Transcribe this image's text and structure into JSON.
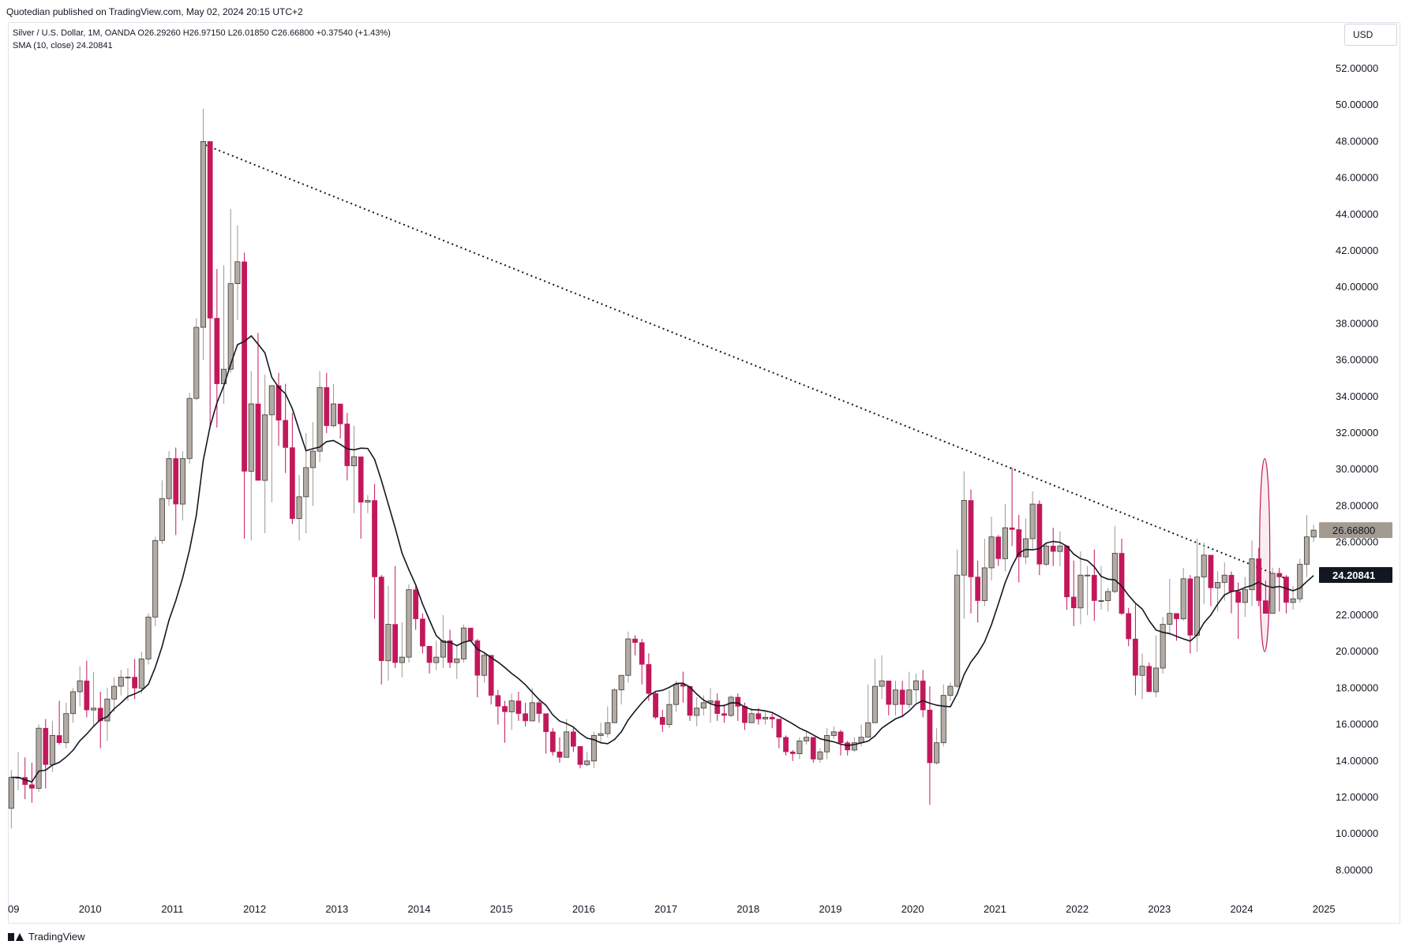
{
  "header": {
    "published": "Quotedian published on TradingView.com, May 02, 2024 20:15 UTC+2",
    "symbol_line": "Silver / U.S. Dollar, 1M, OANDA  O26.29260  H26.97150  L26.01850  C26.66800  +0.37540 (+1.43%)",
    "sma_line": "SMA (10, close)  24.20841",
    "currency": "USD"
  },
  "footer": {
    "brand": "TradingView"
  },
  "colors": {
    "up": "#b2aca4",
    "down": "#c2185b",
    "wick_up": "#9e9890",
    "sma": "#131722",
    "trendline": "#131722",
    "price_label_bg": "#a39b92",
    "sma_label_bg": "#131722"
  },
  "chart_data": {
    "type": "candlestick",
    "title": "Silver / U.S. Dollar, 1M, OANDA",
    "interval": "1M",
    "y_axis": {
      "min": 7,
      "max": 53,
      "ticks": [
        "52.00000",
        "50.00000",
        "48.00000",
        "46.00000",
        "44.00000",
        "42.00000",
        "40.00000",
        "38.00000",
        "36.00000",
        "34.00000",
        "32.00000",
        "30.00000",
        "28.00000",
        "26.00000",
        "24.00000",
        "22.00000",
        "20.00000",
        "18.00000",
        "16.00000",
        "14.00000",
        "12.00000",
        "10.00000",
        "8.00000"
      ],
      "tick_values": [
        52,
        50,
        48,
        46,
        44,
        42,
        40,
        38,
        36,
        34,
        32,
        30,
        28,
        26,
        24,
        22,
        20,
        18,
        16,
        14,
        12,
        10,
        8
      ]
    },
    "x_axis": {
      "start": 2009.0,
      "end": 2025.0,
      "labels": [
        "09",
        "2010",
        "2011",
        "2012",
        "2013",
        "2014",
        "2015",
        "2016",
        "2017",
        "2018",
        "2019",
        "2020",
        "2021",
        "2022",
        "2023",
        "2024",
        "2025"
      ],
      "label_values": [
        2009,
        2010,
        2011,
        2012,
        2013,
        2014,
        2015,
        2016,
        2017,
        2018,
        2019,
        2020,
        2021,
        2022,
        2023,
        2024,
        2025
      ]
    },
    "last_price": {
      "label": "26.66800",
      "value": 26.668
    },
    "sma_value": {
      "label": "24.20841",
      "value": 24.20841
    },
    "series": [
      {
        "name": "Silver / U.S. Dollar",
        "kind": "ohlc",
        "start": [
          2009,
          1
        ],
        "closes": [
          13.1,
          13.1,
          12.7,
          12.5,
          15.8,
          13.8,
          15.4,
          15.0,
          16.6,
          17.8,
          18.4,
          16.8,
          16.9,
          16.2,
          17.4,
          18.1,
          18.6,
          18.6,
          18.0,
          19.6,
          21.9,
          26.1,
          28.4,
          30.6,
          28.1,
          30.6,
          33.9,
          37.8,
          48.0,
          38.3,
          34.7,
          35.5,
          40.2,
          41.4,
          29.9,
          33.6,
          29.4,
          33.0,
          34.6,
          32.7,
          31.2,
          27.3,
          28.5,
          30.1,
          31.0,
          34.5,
          32.4,
          33.6,
          32.5,
          30.2,
          30.7,
          28.2,
          28.3,
          24.1,
          19.5,
          21.5,
          19.4,
          19.7,
          23.4,
          21.8,
          20.3,
          19.4,
          19.7,
          20.6,
          19.4,
          19.6,
          21.3,
          20.6,
          18.7,
          19.8,
          17.6,
          17.0,
          16.7,
          17.3,
          16.6,
          16.2,
          17.2,
          16.6,
          15.6,
          14.5,
          14.2,
          15.6,
          14.8,
          13.8,
          14.0,
          15.4,
          15.5,
          16.1,
          17.9,
          18.7,
          20.7,
          20.5,
          19.3,
          17.7,
          16.4,
          16.0,
          17.1,
          18.2,
          18.1,
          16.5,
          16.9,
          17.2,
          17.3,
          16.6,
          16.5,
          17.5,
          17.0,
          16.1,
          16.6,
          16.3,
          16.4,
          16.3,
          15.3,
          14.5,
          14.4,
          15.1,
          15.3,
          14.1,
          14.5,
          15.4,
          15.6,
          15.0,
          14.6,
          15.0,
          15.3,
          16.1,
          18.1,
          18.4,
          17.1,
          17.9,
          17.1,
          17.9,
          18.4,
          16.8,
          13.9,
          15.0,
          17.6,
          18.1,
          24.2,
          28.3,
          24.1,
          22.8,
          24.6,
          26.3,
          25.1,
          26.8,
          26.7,
          25.2,
          26.2,
          28.1,
          24.8,
          25.8,
          25.5,
          25.8,
          23.0,
          22.4,
          24.2,
          24.2,
          22.8,
          22.8,
          23.3,
          25.4,
          22.1,
          20.7,
          18.7,
          19.2,
          17.8,
          19.1,
          21.5,
          22.1,
          21.8,
          24.0,
          20.9,
          24.1,
          25.3,
          23.5,
          23.8,
          24.2,
          23.3,
          22.7,
          23.4,
          25.1,
          22.8,
          22.1,
          24.3,
          24.1,
          22.7,
          22.9,
          24.8,
          26.3,
          26.668
        ],
        "opens": [
          11.4,
          13.1,
          13.1,
          12.7,
          12.5,
          15.8,
          13.8,
          15.4,
          15.0,
          16.6,
          17.8,
          18.4,
          16.8,
          16.9,
          16.2,
          17.4,
          18.1,
          18.6,
          18.6,
          18.0,
          19.6,
          21.9,
          26.1,
          28.4,
          30.6,
          28.1,
          30.6,
          33.9,
          37.8,
          48.0,
          38.3,
          34.7,
          35.5,
          40.2,
          41.4,
          29.9,
          33.6,
          29.4,
          33.0,
          34.6,
          32.7,
          31.2,
          27.3,
          28.5,
          30.1,
          31.0,
          34.5,
          32.4,
          33.6,
          32.5,
          30.2,
          30.7,
          28.2,
          28.3,
          24.1,
          19.5,
          21.5,
          19.4,
          19.7,
          23.4,
          21.8,
          20.3,
          19.4,
          19.7,
          20.6,
          19.4,
          19.6,
          21.3,
          20.6,
          18.7,
          19.8,
          17.6,
          17.0,
          16.7,
          17.3,
          16.6,
          16.2,
          17.2,
          16.6,
          15.6,
          14.5,
          14.2,
          15.6,
          14.8,
          13.8,
          14.0,
          15.4,
          15.5,
          16.1,
          17.9,
          18.7,
          20.7,
          20.5,
          19.3,
          17.7,
          16.4,
          16.0,
          17.1,
          18.2,
          18.1,
          16.5,
          16.9,
          17.2,
          17.3,
          16.6,
          16.5,
          17.5,
          17.0,
          16.1,
          16.6,
          16.3,
          16.4,
          16.3,
          15.3,
          14.5,
          14.4,
          15.1,
          15.3,
          14.1,
          14.5,
          15.4,
          15.6,
          15.0,
          14.6,
          15.0,
          15.3,
          16.1,
          18.1,
          18.4,
          17.1,
          17.9,
          17.1,
          17.9,
          18.4,
          16.8,
          13.9,
          15.0,
          17.6,
          18.1,
          24.2,
          28.3,
          24.1,
          22.8,
          24.6,
          26.3,
          25.1,
          26.8,
          26.7,
          25.2,
          26.2,
          28.1,
          24.8,
          25.8,
          25.5,
          25.8,
          23.0,
          22.4,
          24.2,
          24.2,
          22.8,
          22.8,
          23.3,
          25.4,
          22.1,
          20.7,
          18.7,
          19.2,
          17.8,
          19.1,
          21.5,
          22.1,
          21.8,
          24.0,
          20.9,
          24.1,
          25.3,
          23.5,
          23.8,
          24.2,
          23.3,
          22.7,
          23.4,
          25.1,
          22.8,
          22.1,
          24.3,
          24.1,
          22.7,
          22.9,
          24.8,
          26.2926
        ],
        "highs": [
          13.5,
          14.5,
          14.2,
          13.9,
          16.0,
          16.3,
          16.2,
          17.3,
          17.2,
          18.0,
          19.2,
          19.5,
          18.9,
          17.8,
          18.0,
          18.6,
          19.0,
          19.1,
          19.6,
          20.0,
          22.1,
          26.3,
          29.4,
          31.0,
          31.2,
          31.0,
          34.2,
          38.3,
          49.8,
          43.9,
          41.0,
          41.2,
          44.3,
          43.4,
          41.9,
          35.4,
          37.5,
          35.2,
          34.5,
          35.3,
          34.7,
          33.1,
          29.7,
          32.0,
          32.6,
          35.4,
          35.3,
          34.7,
          33.6,
          33.1,
          32.4,
          30.4,
          28.6,
          29.2,
          24.2,
          23.6,
          24.7,
          21.6,
          23.7,
          23.6,
          22.1,
          20.1,
          20.6,
          22.0,
          21.2,
          20.3,
          21.5,
          21.2,
          20.7,
          19.9,
          18.3,
          17.9,
          17.3,
          17.7,
          17.8,
          17.2,
          18.0,
          17.3,
          16.3,
          15.8,
          15.3,
          16.3,
          15.8,
          14.8,
          14.5,
          15.6,
          16.1,
          17.0,
          18.0,
          18.3,
          21.1,
          20.9,
          20.7,
          19.9,
          17.8,
          16.8,
          17.9,
          18.4,
          18.9,
          17.9,
          17.5,
          17.6,
          18.0,
          17.7,
          17.1,
          17.6,
          17.7,
          17.2,
          16.9,
          16.9,
          16.7,
          16.6,
          15.9,
          15.4,
          14.6,
          15.3,
          15.6,
          15.3,
          14.7,
          15.8,
          15.9,
          15.7,
          15.1,
          15.3,
          16.0,
          18.2,
          19.6,
          19.8,
          18.3,
          18.4,
          18.4,
          18.9,
          18.8,
          19.0,
          18.1,
          15.8,
          18.2,
          18.3,
          25.6,
          29.9,
          28.9,
          25.0,
          26.2,
          27.4,
          26.4,
          28.1,
          30.1,
          27.5,
          27.3,
          28.8,
          28.3,
          26.0,
          26.8,
          26.6,
          25.8,
          25.0,
          25.5,
          24.7,
          25.6,
          24.7,
          23.5,
          26.9,
          26.2,
          22.4,
          22.6,
          19.9,
          19.4,
          20.9,
          21.9,
          24.0,
          22.1,
          24.6,
          24.2,
          26.2,
          26.0,
          25.2,
          24.4,
          24.9,
          24.4,
          23.8,
          24.1,
          26.1,
          25.7,
          23.9,
          24.6,
          24.6,
          24.2,
          23.6,
          25.1,
          27.5,
          26.9715
        ],
        "lows": [
          10.3,
          12.4,
          11.9,
          11.7,
          12.3,
          12.5,
          13.4,
          14.9,
          14.7,
          16.1,
          17.0,
          16.4,
          15.9,
          14.7,
          15.1,
          16.7,
          17.6,
          17.3,
          17.4,
          17.7,
          19.3,
          21.4,
          25.9,
          28.0,
          26.4,
          27.2,
          30.3,
          33.8,
          36.0,
          32.3,
          32.3,
          33.6,
          35.3,
          38.2,
          26.2,
          26.1,
          30.0,
          26.5,
          28.2,
          31.3,
          29.8,
          27.0,
          26.1,
          26.5,
          28.0,
          30.4,
          32.0,
          32.3,
          31.7,
          29.4,
          27.6,
          26.2,
          27.6,
          21.8,
          18.2,
          18.4,
          19.1,
          18.6,
          19.4,
          21.2,
          19.9,
          18.8,
          19.0,
          19.1,
          19.1,
          18.5,
          19.4,
          20.6,
          17.5,
          18.3,
          17.1,
          16.0,
          15.0,
          15.7,
          16.2,
          15.9,
          16.3,
          16.1,
          14.4,
          14.3,
          13.9,
          14.5,
          14.5,
          13.6,
          13.7,
          13.6,
          15.0,
          15.3,
          16.4,
          17.1,
          18.3,
          19.8,
          18.2,
          17.3,
          16.3,
          15.6,
          15.8,
          16.7,
          17.2,
          16.2,
          15.9,
          16.5,
          16.1,
          16.2,
          16.1,
          16.4,
          16.2,
          15.7,
          16.1,
          16.0,
          16.0,
          15.8,
          14.7,
          14.3,
          14.0,
          14.1,
          14.9,
          13.9,
          13.9,
          14.1,
          15.2,
          14.3,
          14.3,
          14.5,
          14.8,
          15.5,
          16.1,
          17.4,
          16.5,
          16.5,
          16.4,
          16.9,
          17.2,
          16.4,
          11.6,
          13.8,
          14.8,
          17.3,
          18.0,
          21.8,
          22.1,
          21.6,
          22.5,
          23.9,
          24.7,
          24.4,
          25.8,
          23.8,
          24.8,
          25.6,
          24.2,
          24.7,
          24.7,
          24.7,
          22.3,
          21.4,
          21.5,
          22.0,
          21.7,
          22.3,
          22.2,
          23.2,
          22.0,
          20.3,
          17.6,
          17.4,
          17.8,
          17.5,
          18.8,
          20.9,
          20.6,
          21.7,
          19.9,
          20.0,
          22.6,
          22.5,
          22.2,
          22.8,
          22.1,
          20.7,
          21.9,
          22.5,
          22.5,
          22.3,
          22.9,
          22.2,
          22.1,
          22.3,
          22.7,
          24.1,
          26.0185
        ],
        "x_values_note": "monthly candles starting Jan 2009"
      },
      {
        "name": "SMA (10, close)",
        "kind": "line"
      }
    ],
    "trendline": {
      "from": [
        2011.35,
        47.9
      ],
      "to": [
        2024.6,
        23.9
      ]
    },
    "highlight_ellipse": {
      "center": [
        2024.28,
        25.3
      ],
      "radius_months": 0.75,
      "radius_price": 5.3
    }
  }
}
